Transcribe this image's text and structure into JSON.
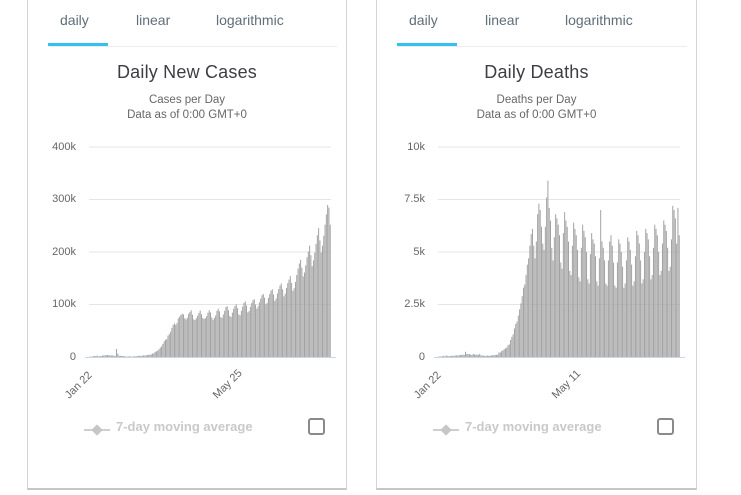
{
  "colors": {
    "accent": "#33c1f0",
    "bar": "#a2a2a2",
    "grid": "#e5e5e5",
    "axis_line": "#ccd6eb",
    "legend_text": "#c9c9c9"
  },
  "panels": [
    {
      "tabs": [
        {
          "label": "daily",
          "active": true
        },
        {
          "label": "linear",
          "active": false
        },
        {
          "label": "logarithmic",
          "active": false
        }
      ],
      "title": "Daily New Cases",
      "subtitle1": "Cases per Day",
      "subtitle2": "Data as of 0:00 GMT+0",
      "y_ticks": [
        "400k",
        "300k",
        "200k",
        "100k",
        "0"
      ],
      "x_tick1": "Jan 22",
      "x_tick2": "May 25",
      "legend_label": "7-day moving average",
      "checkbox_checked": false
    },
    {
      "tabs": [
        {
          "label": "daily",
          "active": true
        },
        {
          "label": "linear",
          "active": false
        },
        {
          "label": "logarithmic",
          "active": false
        }
      ],
      "title": "Daily Deaths",
      "subtitle1": "Deaths per Day",
      "subtitle2": "Data as of 0:00 GMT+0",
      "y_ticks": [
        "10k",
        "7.5k",
        "5k",
        "2.5k",
        "0"
      ],
      "x_tick1": "Jan 22",
      "x_tick2": "May 11",
      "legend_label": "7-day moving average",
      "checkbox_checked": false
    }
  ],
  "chart_data": [
    {
      "type": "bar",
      "title": "Daily New Cases",
      "subtitle": "Cases per Day, Data as of 0:00 GMT+0",
      "xlabel": "",
      "ylabel": "",
      "x_tick_labels": [
        "Jan 22",
        "May 25"
      ],
      "x_start": "Jan 22",
      "x_interval": "1 day",
      "ylim": [
        0,
        400000
      ],
      "y_tick_values": [
        0,
        100000,
        200000,
        300000,
        400000
      ],
      "grid": true,
      "legend_position": "bottom",
      "legend_entries": [
        "7-day moving average"
      ],
      "series": [
        {
          "name": "Daily Cases",
          "values": [
            600,
            700,
            900,
            1300,
            1800,
            2000,
            2800,
            600,
            2100,
            2000,
            2600,
            2800,
            3200,
            3900,
            3700,
            3200,
            3400,
            2700,
            3000,
            2500,
            2000,
            15200,
            6500,
            2600,
            2200,
            2000,
            1900,
            1800,
            800,
            900,
            1000,
            1100,
            1000,
            700,
            1000,
            1100,
            1400,
            1800,
            2000,
            2400,
            2000,
            2600,
            2800,
            2900,
            3300,
            3900,
            4000,
            4300,
            5000,
            6300,
            7600,
            9800,
            10900,
            12100,
            14800,
            17700,
            20400,
            25100,
            30100,
            32800,
            34000,
            40800,
            43500,
            48100,
            55600,
            61400,
            64000,
            61000,
            65000,
            73500,
            76900,
            80000,
            82500,
            81100,
            74000,
            71700,
            74800,
            82400,
            85500,
            89000,
            80500,
            71800,
            70500,
            74000,
            78500,
            84000,
            88500,
            81500,
            74500,
            72500,
            74000,
            78000,
            84500,
            89000,
            85000,
            75500,
            71000,
            74500,
            79000,
            88000,
            92000,
            87000,
            76000,
            74500,
            81000,
            88000,
            95000,
            96500,
            89000,
            78000,
            76500,
            84500,
            92000,
            97000,
            100500,
            93000,
            81000,
            79500,
            88000,
            96000,
            103000,
            106000,
            98000,
            85000,
            87500,
            95500,
            102500,
            108000,
            110000,
            100000,
            92000,
            96500,
            104000,
            111000,
            117500,
            120000,
            113000,
            100500,
            103500,
            112500,
            120000,
            126500,
            129000,
            119000,
            107000,
            111500,
            121000,
            129500,
            136000,
            140000,
            129000,
            115500,
            120500,
            131500,
            140500,
            147500,
            154000,
            141000,
            126000,
            131000,
            143000,
            156000,
            168000,
            178000,
            185000,
            170000,
            153500,
            161000,
            174500,
            190000,
            201000,
            212000,
            194000,
            173000,
            184000,
            198500,
            215500,
            232000,
            245500,
            222000,
            199000,
            212000,
            231000,
            252000,
            271500,
            289500,
            284500,
            252000
          ]
        }
      ]
    },
    {
      "type": "bar",
      "title": "Daily Deaths",
      "subtitle": "Deaths per Day, Data as of 0:00 GMT+0",
      "xlabel": "",
      "ylabel": "",
      "x_tick_labels": [
        "Jan 22",
        "May 11"
      ],
      "x_start": "Jan 22",
      "x_interval": "1 day",
      "ylim": [
        0,
        10000
      ],
      "y_tick_values": [
        0,
        2500,
        5000,
        7500,
        10000
      ],
      "grid": true,
      "legend_position": "bottom",
      "legend_entries": [
        "7-day moving average"
      ],
      "series": [
        {
          "name": "Daily Deaths",
          "values": [
            20,
            20,
            30,
            30,
            60,
            30,
            80,
            40,
            40,
            50,
            60,
            50,
            60,
            70,
            70,
            70,
            90,
            90,
            100,
            110,
            100,
            250,
            150,
            140,
            140,
            110,
            100,
            140,
            120,
            110,
            110,
            100,
            150,
            80,
            70,
            60,
            60,
            50,
            70,
            60,
            60,
            80,
            80,
            90,
            100,
            100,
            110,
            220,
            210,
            280,
            310,
            370,
            410,
            450,
            560,
            600,
            810,
            960,
            1080,
            1360,
            1570,
            1690,
            1970,
            2270,
            2550,
            2900,
            3300,
            3450,
            3900,
            4400,
            4700,
            5300,
            5850,
            6100,
            5300,
            4700,
            5500,
            6800,
            7300,
            7000,
            6200,
            5400,
            5100,
            6200,
            7600,
            8400,
            7100,
            6500,
            5200,
            4600,
            5700,
            6800,
            6600,
            6300,
            5800,
            4500,
            4200,
            5900,
            6900,
            6500,
            6200,
            5500,
            4100,
            3900,
            5300,
            6400,
            6100,
            5800,
            5100,
            3800,
            3600,
            5200,
            6300,
            6000,
            5700,
            5000,
            3700,
            3500,
            4900,
            5900,
            5600,
            5400,
            4800,
            3600,
            3400,
            4700,
            7000,
            5500,
            5200,
            4600,
            3500,
            3400,
            4600,
            5500,
            5800,
            5300,
            4500,
            3400,
            3300,
            4500,
            5600,
            5400,
            5000,
            4300,
            3300,
            3500,
            4600,
            5700,
            5500,
            5100,
            4400,
            3400,
            3600,
            4800,
            6000,
            5800,
            5400,
            4600,
            3500,
            3700,
            5000,
            6100,
            5900,
            5600,
            4800,
            3700,
            3900,
            5200,
            6300,
            6100,
            5800,
            5000,
            3900,
            4100,
            5400,
            6500,
            6300,
            6000,
            5200,
            4100,
            4300,
            5600,
            7200,
            7000,
            6600,
            5400,
            7100,
            5800
          ]
        }
      ]
    }
  ]
}
